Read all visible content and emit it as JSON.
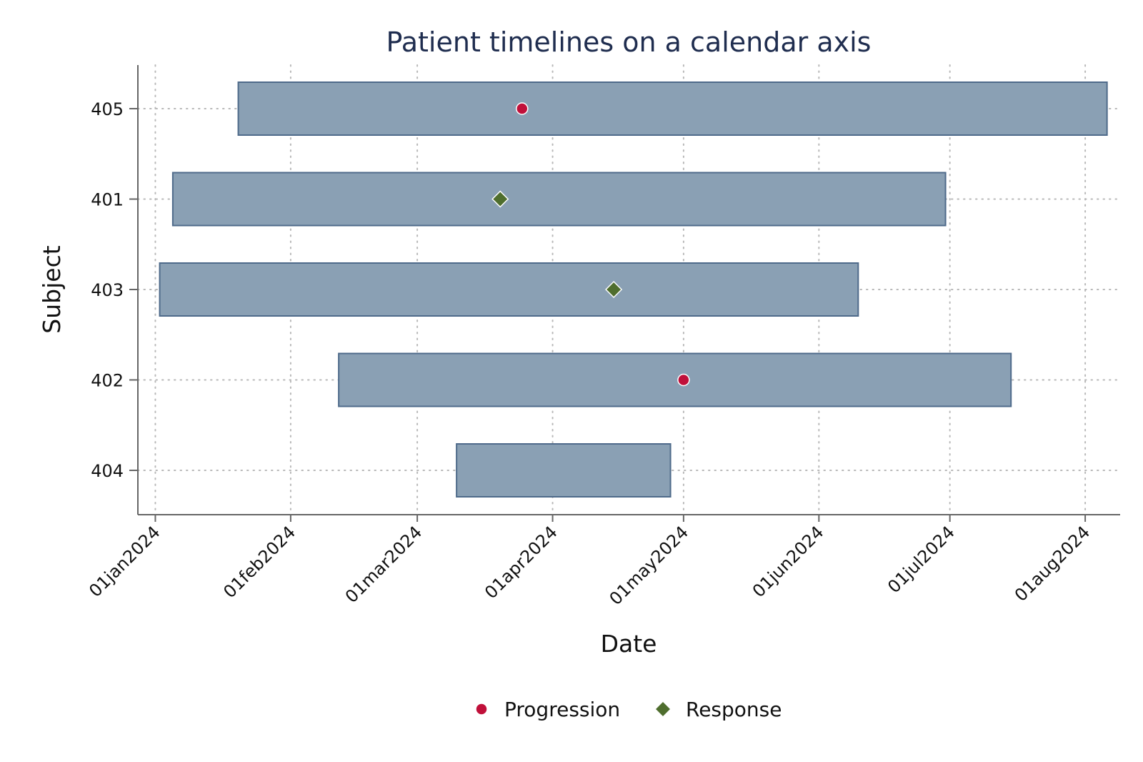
{
  "chart_data": {
    "type": "timeline",
    "title": "Patient timelines on a calendar axis",
    "xlabel": "Date",
    "ylabel": "Subject",
    "x_axis_type": "date",
    "xlim": [
      "2023-12-28",
      "2024-08-09"
    ],
    "xticks": [
      "2024-01-01",
      "2024-02-01",
      "2024-03-01",
      "2024-04-01",
      "2024-05-01",
      "2024-06-01",
      "2024-07-01",
      "2024-08-01"
    ],
    "xtick_labels": [
      "01jan2024",
      "01feb2024",
      "01mar2024",
      "01apr2024",
      "01may2024",
      "01jun2024",
      "01jul2024",
      "01aug2024"
    ],
    "subjects": [
      "405",
      "401",
      "403",
      "402",
      "404"
    ],
    "bars": [
      {
        "subject": "405",
        "start": "2024-01-20",
        "end": "2024-08-06"
      },
      {
        "subject": "401",
        "start": "2024-01-05",
        "end": "2024-06-30"
      },
      {
        "subject": "403",
        "start": "2024-01-02",
        "end": "2024-06-10"
      },
      {
        "subject": "402",
        "start": "2024-02-12",
        "end": "2024-07-15"
      },
      {
        "subject": "404",
        "start": "2024-03-10",
        "end": "2024-04-28"
      }
    ],
    "events": [
      {
        "subject": "405",
        "date": "2024-03-25",
        "type": "Progression"
      },
      {
        "subject": "401",
        "date": "2024-03-20",
        "type": "Response"
      },
      {
        "subject": "403",
        "date": "2024-04-15",
        "type": "Response"
      },
      {
        "subject": "402",
        "date": "2024-05-01",
        "type": "Progression"
      }
    ],
    "legend": {
      "placement": "bottom",
      "items": [
        {
          "label": "Progression",
          "marker": "circle",
          "color": "#c0103a"
        },
        {
          "label": "Response",
          "marker": "diamond",
          "color": "#4f6e2e"
        }
      ]
    },
    "grid": true,
    "colors": {
      "bar_fill": "#8aa0b4",
      "bar_stroke": "#4e6a8a",
      "title": "#1f2d4f"
    }
  }
}
